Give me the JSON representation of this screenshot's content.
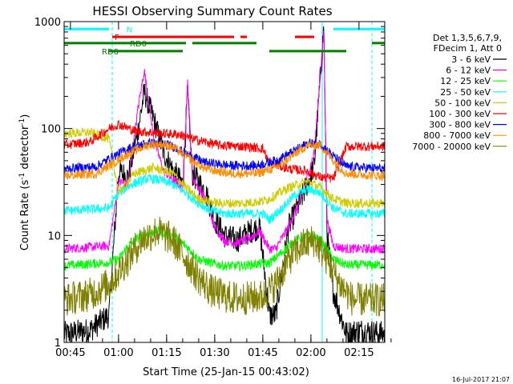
{
  "chart_data": {
    "type": "line",
    "title": "HESSI Observing Summary Count Rates",
    "xlabel": "Start Time (25-Jan-15 00:43:02)",
    "ylabel": "Count Rate (s",
    "ylabel_sup": "-1",
    "ylabel_tail": " detector",
    "ylabel_close": ")",
    "yscale": "log",
    "x_unit": "minutes after 00:43:02",
    "xlim": [
      0,
      100
    ],
    "ylim": [
      1,
      1000
    ],
    "x_ticks": [
      {
        "label": "00:45",
        "x": 1.97
      },
      {
        "label": "01:00",
        "x": 16.97
      },
      {
        "label": "01:15",
        "x": 31.97
      },
      {
        "label": "01:30",
        "x": 46.97
      },
      {
        "label": "01:45",
        "x": 61.97
      },
      {
        "label": "02:00",
        "x": 76.97
      },
      {
        "label": "02:15",
        "x": 91.97
      }
    ],
    "y_ticks": [
      {
        "label": "1",
        "y": 1
      },
      {
        "label": "10",
        "y": 10
      },
      {
        "label": "100",
        "y": 100
      },
      {
        "label": "1000",
        "y": 1000
      }
    ],
    "grid": false,
    "legend": {
      "placement": "right",
      "header": [
        "Det 1,3,5,6,7,9,",
        "FDecim 1, Att 0"
      ]
    },
    "series": [
      {
        "name": "3 - 6 keV",
        "color": "#000000",
        "values": [
          [
            0,
            1.2
          ],
          [
            8,
            1.3
          ],
          [
            14,
            1.8
          ],
          [
            17,
            40
          ],
          [
            20,
            35
          ],
          [
            23,
            95
          ],
          [
            25,
            220
          ],
          [
            28,
            120
          ],
          [
            31,
            60
          ],
          [
            34,
            40
          ],
          [
            37,
            30
          ],
          [
            38.5,
            220
          ],
          [
            40,
            38
          ],
          [
            44,
            26
          ],
          [
            47,
            14
          ],
          [
            50,
            10
          ],
          [
            54,
            9
          ],
          [
            58,
            11
          ],
          [
            61,
            12
          ],
          [
            64,
            1.8
          ],
          [
            66,
            1.8
          ],
          [
            70,
            12
          ],
          [
            74,
            22
          ],
          [
            78,
            45
          ],
          [
            81,
            900
          ],
          [
            82,
            10
          ],
          [
            84,
            3
          ],
          [
            88,
            1.2
          ],
          [
            92,
            1.3
          ],
          [
            100,
            1.2
          ]
        ]
      },
      {
        "name": "6 - 12 keV",
        "color": "#ff00ff",
        "values": [
          [
            0,
            7.5
          ],
          [
            14,
            8
          ],
          [
            17,
            32
          ],
          [
            20,
            30
          ],
          [
            23,
            150
          ],
          [
            25,
            350
          ],
          [
            28,
            80
          ],
          [
            31,
            40
          ],
          [
            34,
            33
          ],
          [
            37,
            28
          ],
          [
            38.5,
            280
          ],
          [
            40,
            35
          ],
          [
            44,
            22
          ],
          [
            47,
            12
          ],
          [
            50,
            9
          ],
          [
            54,
            8.5
          ],
          [
            58,
            9.5
          ],
          [
            61,
            11
          ],
          [
            64,
            7.5
          ],
          [
            66,
            7.5
          ],
          [
            70,
            12
          ],
          [
            74,
            22
          ],
          [
            78,
            60
          ],
          [
            81,
            800
          ],
          [
            82,
            14
          ],
          [
            84,
            8
          ],
          [
            88,
            7.5
          ],
          [
            100,
            7.5
          ]
        ]
      },
      {
        "name": "12 - 25 keV",
        "color": "#00ff00",
        "values": [
          [
            0,
            5.2
          ],
          [
            14,
            5.6
          ],
          [
            17,
            6
          ],
          [
            20,
            8
          ],
          [
            24,
            10
          ],
          [
            29,
            11
          ],
          [
            34,
            10
          ],
          [
            38,
            8
          ],
          [
            42,
            6
          ],
          [
            46,
            5.5
          ],
          [
            50,
            5.2
          ],
          [
            55,
            5.2
          ],
          [
            60,
            5.4
          ],
          [
            64,
            5.5
          ],
          [
            68,
            7
          ],
          [
            72,
            9
          ],
          [
            76,
            10
          ],
          [
            80,
            9
          ],
          [
            84,
            6
          ],
          [
            88,
            5.3
          ],
          [
            100,
            5.3
          ]
        ]
      },
      {
        "name": "25 - 50 keV",
        "color": "#00ffff",
        "values": [
          [
            0,
            17
          ],
          [
            14,
            18
          ],
          [
            17,
            25
          ],
          [
            21,
            30
          ],
          [
            26,
            34
          ],
          [
            30,
            33
          ],
          [
            34,
            30
          ],
          [
            38,
            25
          ],
          [
            42,
            20
          ],
          [
            46,
            17
          ],
          [
            50,
            16
          ],
          [
            56,
            16
          ],
          [
            62,
            16
          ],
          [
            64,
            14
          ],
          [
            68,
            18
          ],
          [
            72,
            24
          ],
          [
            76,
            27
          ],
          [
            80,
            25
          ],
          [
            84,
            18
          ],
          [
            88,
            16
          ],
          [
            100,
            16
          ]
        ]
      },
      {
        "name": "50 - 100 keV",
        "color": "#cccc00",
        "values": [
          [
            0,
            90
          ],
          [
            8,
            92
          ],
          [
            14,
            80
          ],
          [
            17,
            25
          ],
          [
            22,
            38
          ],
          [
            28,
            43
          ],
          [
            34,
            38
          ],
          [
            38,
            28
          ],
          [
            42,
            22
          ],
          [
            48,
            20
          ],
          [
            56,
            20
          ],
          [
            62,
            21
          ],
          [
            64,
            22
          ],
          [
            70,
            28
          ],
          [
            76,
            32
          ],
          [
            80,
            28
          ],
          [
            84,
            22
          ],
          [
            88,
            20
          ],
          [
            100,
            20
          ]
        ]
      },
      {
        "name": "100 - 300 keV",
        "color": "#ff0000",
        "values": [
          [
            0,
            70
          ],
          [
            8,
            75
          ],
          [
            14,
            100
          ],
          [
            17,
            110
          ],
          [
            22,
            95
          ],
          [
            30,
            90
          ],
          [
            36,
            88
          ],
          [
            40,
            80
          ],
          [
            44,
            75
          ],
          [
            48,
            70
          ],
          [
            56,
            68
          ],
          [
            62,
            65
          ],
          [
            64,
            48
          ],
          [
            70,
            42
          ],
          [
            76,
            40
          ],
          [
            80,
            35
          ],
          [
            84,
            34
          ],
          [
            88,
            68
          ],
          [
            100,
            68
          ]
        ]
      },
      {
        "name": "300 - 800 keV",
        "color": "#0000ff",
        "values": [
          [
            0,
            42
          ],
          [
            10,
            44
          ],
          [
            14,
            52
          ],
          [
            20,
            65
          ],
          [
            26,
            73
          ],
          [
            30,
            73
          ],
          [
            34,
            68
          ],
          [
            38,
            58
          ],
          [
            44,
            48
          ],
          [
            52,
            45
          ],
          [
            60,
            45
          ],
          [
            66,
            50
          ],
          [
            72,
            62
          ],
          [
            76,
            73
          ],
          [
            80,
            72
          ],
          [
            84,
            55
          ],
          [
            88,
            44
          ],
          [
            100,
            42
          ]
        ]
      },
      {
        "name": "800 - 7000 keV",
        "color": "#ff8c00",
        "values": [
          [
            0,
            36
          ],
          [
            10,
            38
          ],
          [
            14,
            45
          ],
          [
            20,
            58
          ],
          [
            26,
            70
          ],
          [
            30,
            72
          ],
          [
            34,
            67
          ],
          [
            38,
            55
          ],
          [
            44,
            42
          ],
          [
            52,
            38
          ],
          [
            60,
            38
          ],
          [
            66,
            43
          ],
          [
            72,
            58
          ],
          [
            76,
            70
          ],
          [
            80,
            70
          ],
          [
            84,
            50
          ],
          [
            88,
            38
          ],
          [
            100,
            36
          ]
        ]
      },
      {
        "name": "7000 - 20000 keV",
        "color": "#808000",
        "values": [
          [
            0,
            2.5
          ],
          [
            8,
            2.8
          ],
          [
            14,
            3.5
          ],
          [
            18,
            5
          ],
          [
            24,
            9
          ],
          [
            29,
            11
          ],
          [
            34,
            9
          ],
          [
            38,
            6
          ],
          [
            42,
            4
          ],
          [
            46,
            3
          ],
          [
            52,
            2.6
          ],
          [
            58,
            2.6
          ],
          [
            62,
            2.7
          ],
          [
            66,
            3.5
          ],
          [
            70,
            6
          ],
          [
            74,
            8
          ],
          [
            78,
            9
          ],
          [
            82,
            6
          ],
          [
            86,
            3.5
          ],
          [
            90,
            2.5
          ],
          [
            100,
            2.5
          ]
        ]
      }
    ],
    "state_bars": [
      {
        "label": "N",
        "color": "#00ffff",
        "level": 850,
        "segments": [
          [
            0,
            14
          ],
          [
            84,
            100
          ]
        ]
      },
      {
        "label": "F",
        "color": "#ff0000",
        "level": 720,
        "segments": [
          [
            15,
            53
          ],
          [
            55,
            57
          ],
          [
            72,
            78
          ]
        ]
      },
      {
        "label": "RD0",
        "color": "#008000",
        "level": 630,
        "segments": [
          [
            0,
            38
          ],
          [
            40,
            60
          ],
          [
            96,
            100
          ]
        ]
      },
      {
        "label": "RD6",
        "color": "#008000",
        "level": 530,
        "segments": [
          [
            14,
            37
          ],
          [
            64,
            88
          ]
        ]
      }
    ],
    "vlines": [
      {
        "color": "#00ffff",
        "x": 15,
        "dashed": true
      },
      {
        "color": "#00ffff",
        "x": 80.5,
        "dashed": false
      },
      {
        "color": "#00ffff",
        "x": 96,
        "dashed": true
      }
    ],
    "footer_date": "16-Jul-2017 21:07"
  }
}
